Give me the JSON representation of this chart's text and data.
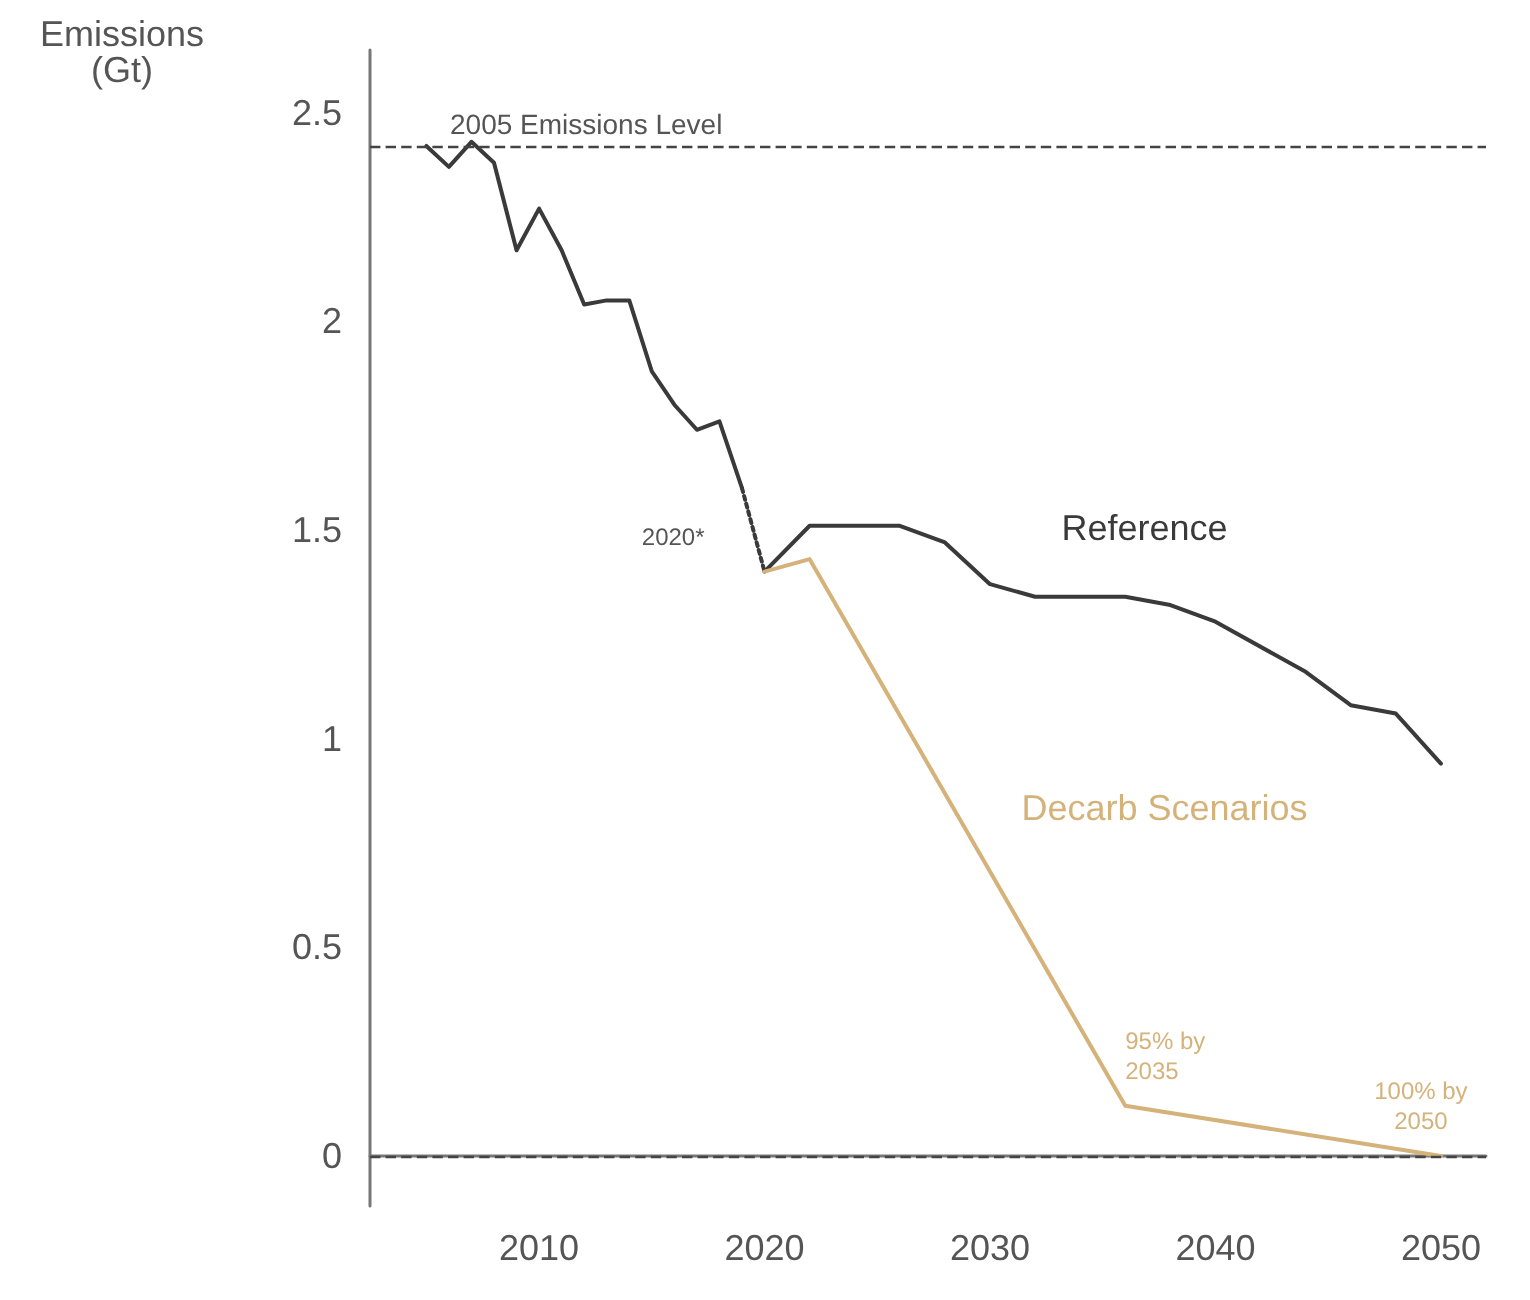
{
  "chart_data": {
    "type": "line",
    "ylabel": "Emissions\n(Gt)",
    "xlim": [
      2002.5,
      2052
    ],
    "xticks": [
      2010,
      2020,
      2030,
      2040,
      2050
    ],
    "ylim": [
      -0.12,
      2.65
    ],
    "yticks": [
      0,
      0.5,
      1,
      1.5,
      2,
      2.5
    ],
    "grid": false,
    "legend": false,
    "marker": "none",
    "series": [
      {
        "color": "#3a3a3a",
        "x": [
          2005,
          2006,
          2007,
          2008,
          2009,
          2010,
          2011,
          2012,
          2013,
          2014,
          2015,
          2016,
          2017,
          2018,
          2019
        ],
        "values": [
          2.42,
          2.37,
          2.43,
          2.38,
          2.17,
          2.27,
          2.17,
          2.04,
          2.05,
          2.05,
          1.88,
          1.8,
          1.74,
          1.76,
          1.6
        ]
      },
      {
        "color": "#3a3a3a",
        "line_style": "dotted",
        "x": [
          2019,
          2020
        ],
        "values": [
          1.6,
          1.4
        ]
      },
      {
        "name": "Reference",
        "color": "#3a3a3a",
        "x": [
          2020,
          2022,
          2026,
          2028,
          2030,
          2032,
          2036,
          2038,
          2040,
          2044,
          2046,
          2048,
          2050
        ],
        "values": [
          1.4,
          1.51,
          1.51,
          1.47,
          1.37,
          1.34,
          1.34,
          1.32,
          1.28,
          1.16,
          1.08,
          1.06,
          0.94
        ]
      },
      {
        "name": "Decarb Scenarios",
        "color": "#d4b27a",
        "x": [
          2020,
          2022,
          2036,
          2050
        ],
        "values": [
          1.4,
          1.43,
          0.12,
          0
        ]
      }
    ],
    "ref_lines": [
      {
        "axis": "y",
        "value": 2.42,
        "label": "2005 Emissions Level",
        "line_style": "dashed",
        "color": "#444444"
      },
      {
        "axis": "y",
        "value": 0,
        "line_style": "dashed",
        "color": "#444444"
      }
    ],
    "annotations": [
      {
        "text": "2020*",
        "x": 2020,
        "y": 1.4
      },
      {
        "text": "95% by\n2035",
        "x": 2036,
        "y": 0.12
      },
      {
        "text": "100% by\n2050",
        "x": 2050,
        "y": 0
      }
    ]
  }
}
